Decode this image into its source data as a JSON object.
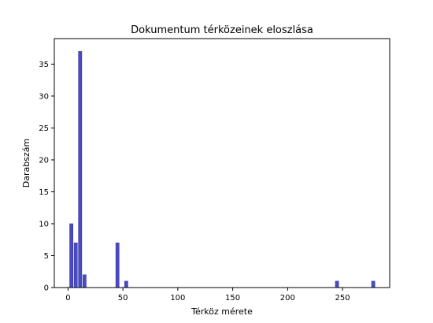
{
  "chart_data": {
    "type": "bar",
    "title": "Dokumentum térközeinek eloszlása",
    "xlabel": "Térköz mérete",
    "ylabel": "Darabszám",
    "xlim": [
      -12.5,
      293
    ],
    "ylim": [
      0,
      39
    ],
    "bar_color": "#4B4BC0",
    "bar_edge_color": "#3838A8",
    "bar_width": 3,
    "grid": false,
    "legend": "none",
    "x_ticks": [
      {
        "value": 0,
        "label": "0"
      },
      {
        "value": 50,
        "label": "50"
      },
      {
        "value": 100,
        "label": "100"
      },
      {
        "value": 150,
        "label": "150"
      },
      {
        "value": 200,
        "label": "200"
      },
      {
        "value": 250,
        "label": "250"
      }
    ],
    "y_ticks": [
      {
        "value": 0,
        "label": "0"
      },
      {
        "value": 5,
        "label": "5"
      },
      {
        "value": 10,
        "label": "10"
      },
      {
        "value": 15,
        "label": "15"
      },
      {
        "value": 20,
        "label": "20"
      },
      {
        "value": 25,
        "label": "25"
      },
      {
        "value": 30,
        "label": "30"
      },
      {
        "value": 35,
        "label": "35"
      }
    ],
    "points": [
      {
        "x": 3,
        "y": 10
      },
      {
        "x": 7,
        "y": 7
      },
      {
        "x": 11,
        "y": 37
      },
      {
        "x": 15,
        "y": 2
      },
      {
        "x": 45,
        "y": 7
      },
      {
        "x": 53,
        "y": 1
      },
      {
        "x": 245,
        "y": 1
      },
      {
        "x": 278,
        "y": 1
      }
    ]
  }
}
